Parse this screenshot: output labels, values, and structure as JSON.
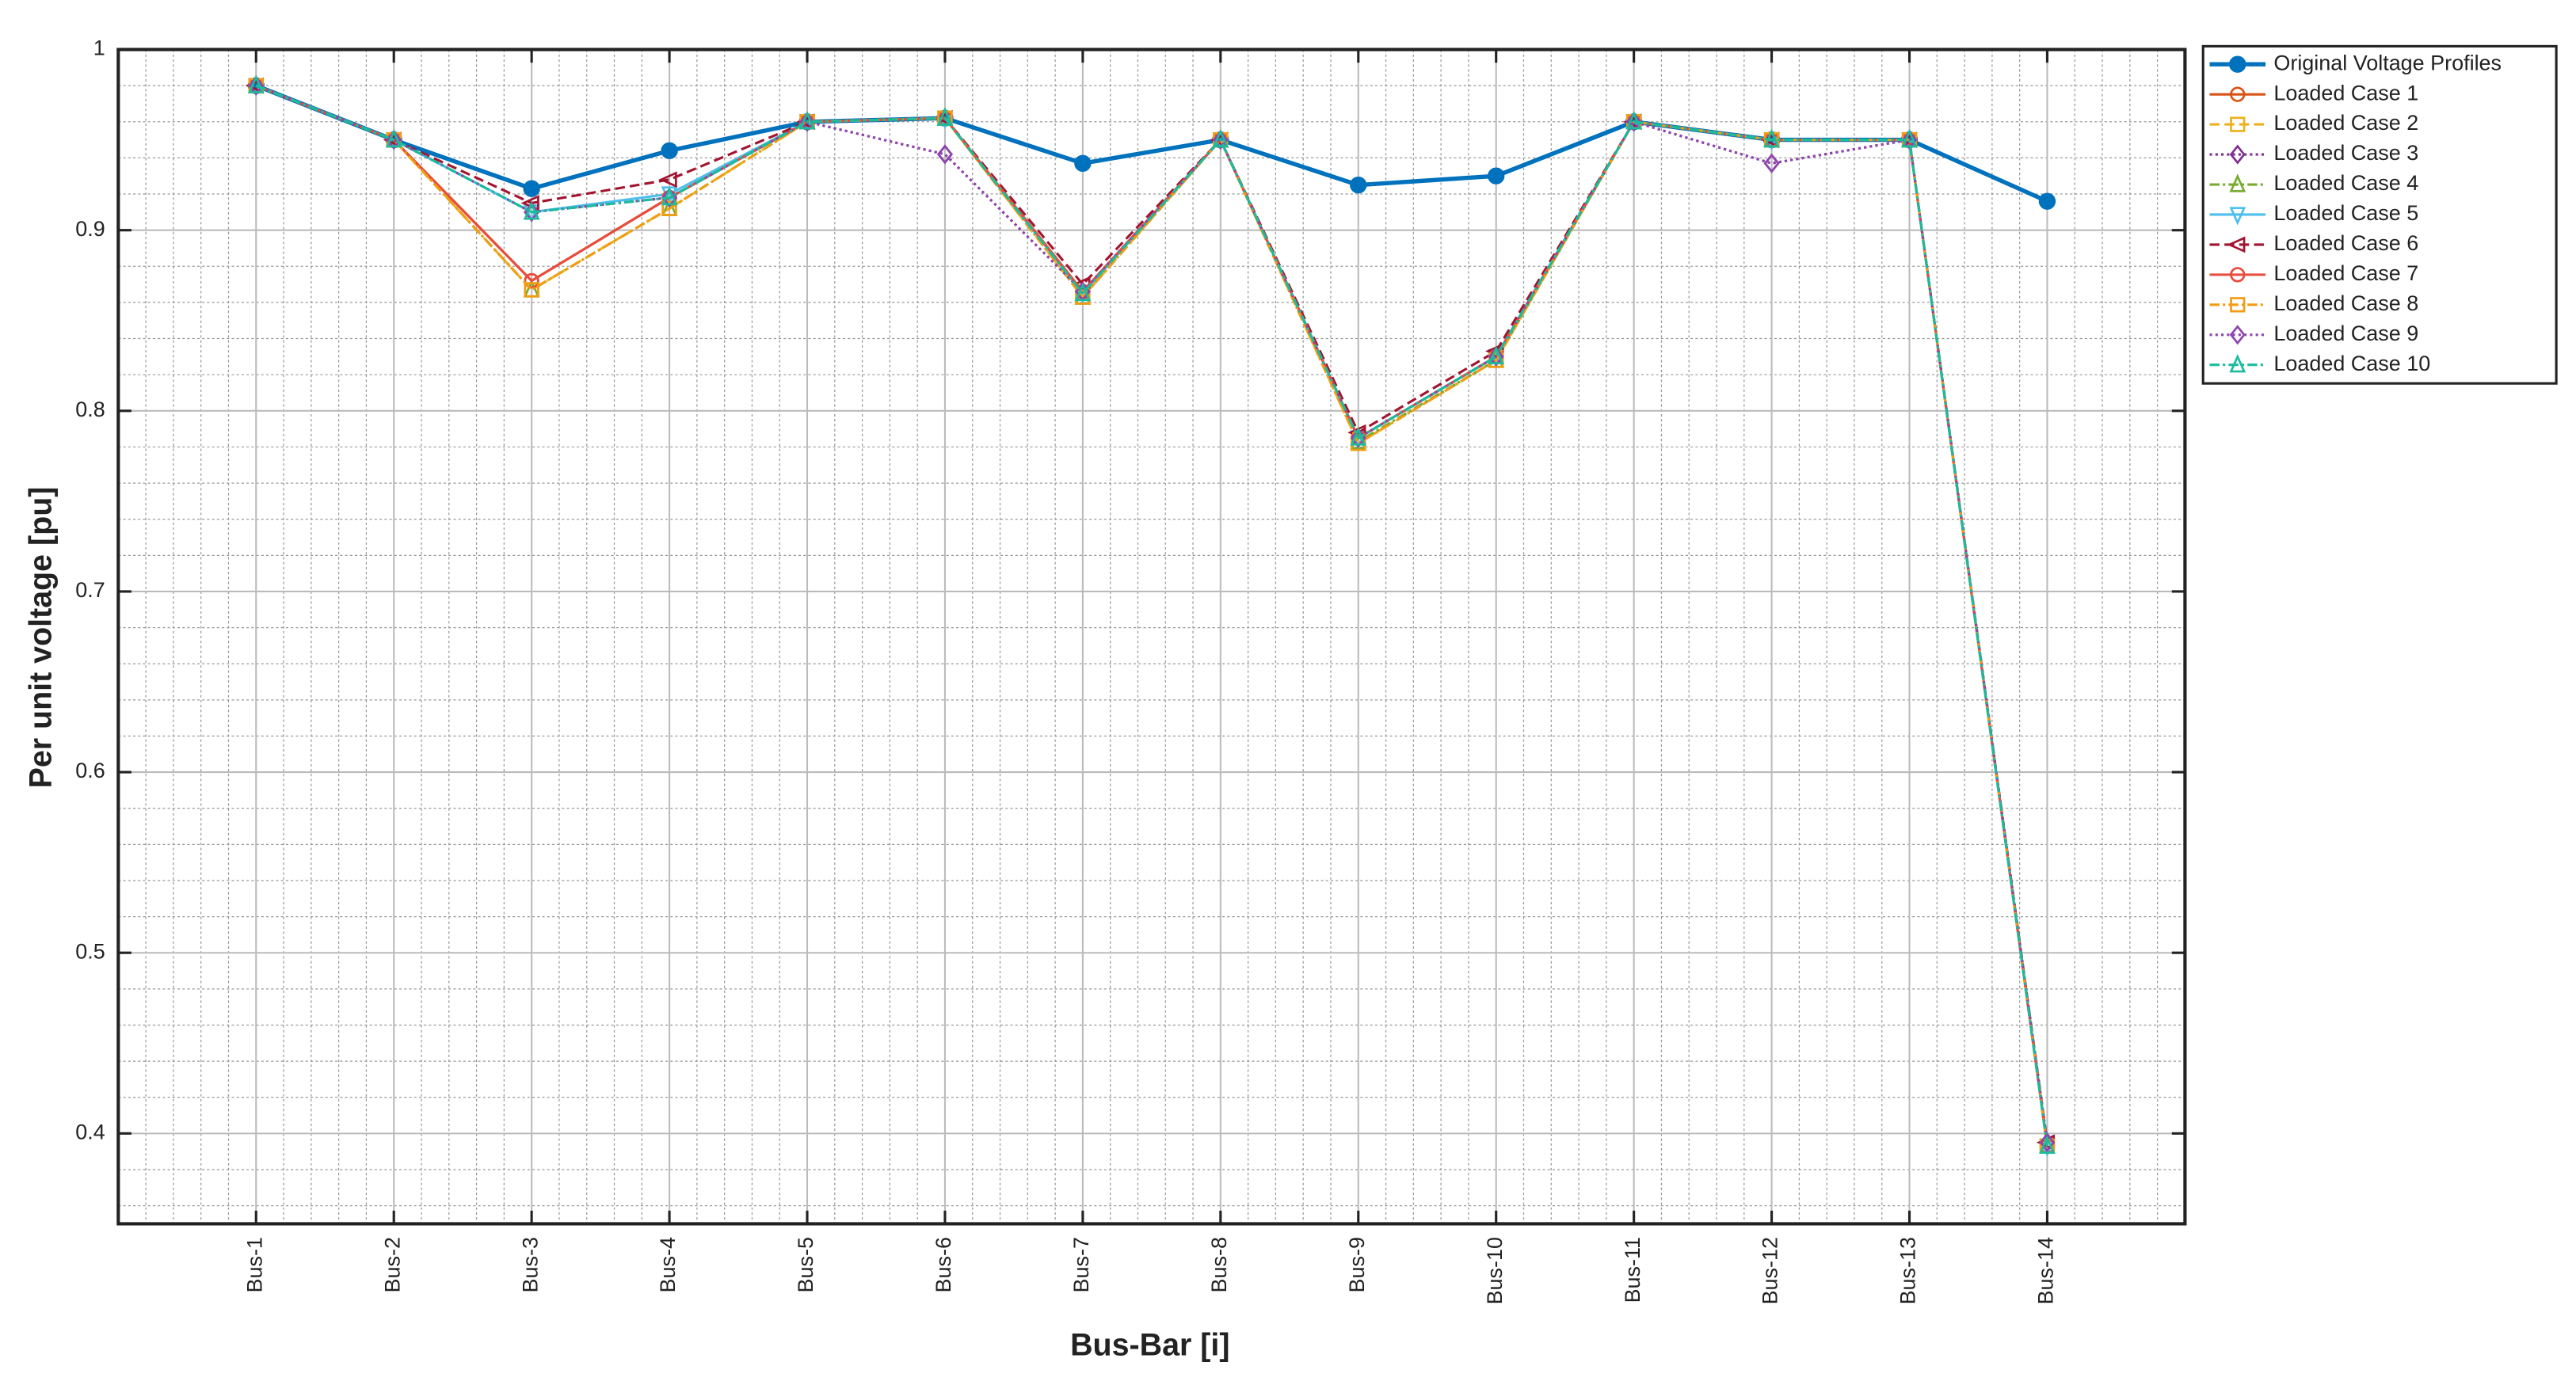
{
  "chart_data": {
    "type": "line",
    "x_label": "Bus-Bar [i]",
    "y_label": "Per unit voltage [pu]",
    "categories": [
      "Bus-1",
      "Bus-2",
      "Bus-3",
      "Bus-4",
      "Bus-5",
      "Bus-6",
      "Bus-7",
      "Bus-8",
      "Bus-9",
      "Bus-10",
      "Bus-11",
      "Bus-12",
      "Bus-13",
      "Bus-14"
    ],
    "ylim": [
      0.35,
      1
    ],
    "yticks": [
      0.4,
      0.5,
      0.6,
      0.7,
      0.8,
      0.9,
      1
    ],
    "grid": true,
    "minor_grid": true,
    "legend": "outside-top-right",
    "series": [
      {
        "name": "Original Voltage Profiles",
        "color": "#0072BD",
        "marker": "circle",
        "dash": "solid",
        "values": [
          0.98,
          0.95,
          0.923,
          0.944,
          0.96,
          0.962,
          0.937,
          0.95,
          0.925,
          0.93,
          0.96,
          0.95,
          0.95,
          0.916
        ]
      },
      {
        "name": "Loaded Case 1",
        "color": "#D95319",
        "marker": "circle-open",
        "dash": "solid",
        "values": [
          0.98,
          0.95,
          0.872,
          0.918,
          0.96,
          0.962,
          0.866,
          0.95,
          0.785,
          0.83,
          0.96,
          0.95,
          0.95,
          0.393
        ]
      },
      {
        "name": "Loaded Case 2",
        "color": "#EDB120",
        "marker": "square",
        "dash": "dashed",
        "values": [
          0.98,
          0.95,
          0.867,
          0.912,
          0.96,
          0.962,
          0.863,
          0.95,
          0.782,
          0.828,
          0.96,
          0.95,
          0.95,
          0.393
        ]
      },
      {
        "name": "Loaded Case 3",
        "color": "#7E2F8E",
        "marker": "diamond",
        "dash": "dotted",
        "values": [
          0.98,
          0.95,
          0.91,
          0.918,
          0.96,
          0.942,
          0.866,
          0.95,
          0.785,
          0.83,
          0.96,
          0.937,
          0.95,
          0.395
        ]
      },
      {
        "name": "Loaded Case 4",
        "color": "#77AC30",
        "marker": "triangle-up",
        "dash": "dashdot",
        "values": [
          0.98,
          0.95,
          0.867,
          0.912,
          0.96,
          0.962,
          0.863,
          0.95,
          0.783,
          0.828,
          0.96,
          0.95,
          0.95,
          0.393
        ]
      },
      {
        "name": "Loaded Case 5",
        "color": "#4DBEEE",
        "marker": "triangle-down",
        "dash": "solid",
        "values": [
          0.98,
          0.95,
          0.91,
          0.92,
          0.96,
          0.962,
          0.865,
          0.95,
          0.785,
          0.83,
          0.96,
          0.95,
          0.95,
          0.393
        ]
      },
      {
        "name": "Loaded Case 6",
        "color": "#A2142F",
        "marker": "triangle-left",
        "dash": "dashed",
        "values": [
          0.98,
          0.95,
          0.915,
          0.928,
          0.96,
          0.962,
          0.87,
          0.95,
          0.788,
          0.833,
          0.96,
          0.95,
          0.95,
          0.395
        ]
      },
      {
        "name": "Loaded Case 7",
        "color": "#E74C3C",
        "marker": "circle-open",
        "dash": "solid",
        "values": [
          0.98,
          0.95,
          0.872,
          0.918,
          0.96,
          0.962,
          0.866,
          0.95,
          0.785,
          0.83,
          0.96,
          0.95,
          0.95,
          0.393
        ]
      },
      {
        "name": "Loaded Case 8",
        "color": "#F39C12",
        "marker": "square",
        "dash": "dashdot",
        "values": [
          0.98,
          0.95,
          0.867,
          0.912,
          0.96,
          0.962,
          0.863,
          0.95,
          0.782,
          0.828,
          0.96,
          0.95,
          0.95,
          0.393
        ]
      },
      {
        "name": "Loaded Case 9",
        "color": "#8E44AD",
        "marker": "diamond",
        "dash": "dotted",
        "values": [
          0.98,
          0.95,
          0.91,
          0.918,
          0.96,
          0.942,
          0.866,
          0.95,
          0.785,
          0.83,
          0.96,
          0.937,
          0.95,
          0.395
        ]
      },
      {
        "name": "Loaded Case 10",
        "color": "#1ABC9C",
        "marker": "triangle-up",
        "dash": "dashdot",
        "values": [
          0.98,
          0.95,
          0.91,
          0.918,
          0.96,
          0.962,
          0.865,
          0.95,
          0.785,
          0.83,
          0.96,
          0.95,
          0.95,
          0.393
        ]
      }
    ]
  }
}
